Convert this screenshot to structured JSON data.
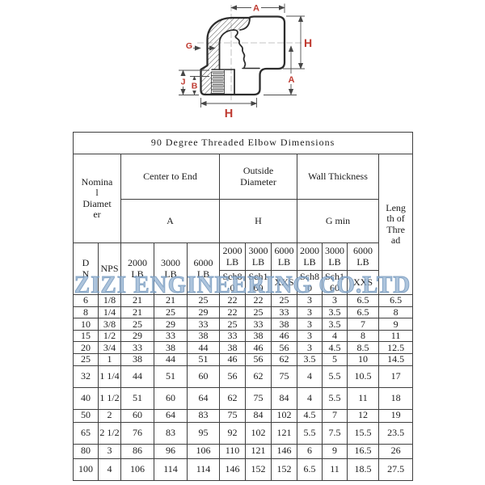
{
  "diagram": {
    "labels": {
      "top_a": "A",
      "right_h": "H",
      "right_a": "A",
      "g": "G",
      "j": "J",
      "b": "B",
      "bottom_h": "H"
    },
    "label_color": "#bf3a30"
  },
  "watermark": {
    "text": "ZIZI ENGINEERING CO.LTD",
    "color": "#96b4d2"
  },
  "table": {
    "title": "90 Degree Threaded Elbow Dimensions",
    "header": {
      "nominal_diameter": "Nomina\nl\nDiamet\ner",
      "center_to_end": "Center to End",
      "outside_diameter": "Outside\nDiameter",
      "wall_thickness": "Wall Thickness",
      "length_of_thread": "Leng\nth of\nThre\nad",
      "a": "A",
      "h": "H",
      "g_min": "G min",
      "dn": "D\nN",
      "nps": "NPS",
      "center_ratings": [
        "2000\nLB",
        "3000\nLB",
        "6000\nLB"
      ],
      "od_ratings": [
        "2000\nLB",
        "3000\nLB",
        "6000\nLB"
      ],
      "od_schedules": [
        "Sch8\n0",
        "Sch1\n60",
        "XXS"
      ],
      "wall_ratings": [
        "2000\nLB",
        "3000\nLB",
        "6000\nLB"
      ],
      "wall_schedules": [
        "Sch8\n0",
        "Sch1\n60",
        "XXS"
      ]
    },
    "rows": [
      {
        "dn": "6",
        "nps": "1/8",
        "a": [
          "21",
          "21",
          "25"
        ],
        "h": [
          "22",
          "22",
          "25"
        ],
        "g": [
          "3",
          "3",
          "6.5"
        ],
        "thread": "6.5"
      },
      {
        "dn": "8",
        "nps": "1/4",
        "a": [
          "21",
          "25",
          "29"
        ],
        "h": [
          "22",
          "25",
          "33"
        ],
        "g": [
          "3",
          "3.5",
          "6.5"
        ],
        "thread": "8"
      },
      {
        "dn": "10",
        "nps": "3/8",
        "a": [
          "25",
          "29",
          "33"
        ],
        "h": [
          "25",
          "33",
          "38"
        ],
        "g": [
          "3",
          "3.5",
          "7"
        ],
        "thread": "9"
      },
      {
        "dn": "15",
        "nps": "1/2",
        "a": [
          "29",
          "33",
          "38"
        ],
        "h": [
          "33",
          "38",
          "46"
        ],
        "g": [
          "3",
          "4",
          "8"
        ],
        "thread": "11"
      },
      {
        "dn": "20",
        "nps": "3/4",
        "a": [
          "33",
          "38",
          "44"
        ],
        "h": [
          "38",
          "46",
          "56"
        ],
        "g": [
          "3",
          "4.5",
          "8.5"
        ],
        "thread": "12.5"
      },
      {
        "dn": "25",
        "nps": "1",
        "a": [
          "38",
          "44",
          "51"
        ],
        "h": [
          "46",
          "56",
          "62"
        ],
        "g": [
          "3.5",
          "5",
          "10"
        ],
        "thread": "14.5"
      },
      {
        "dn": "32",
        "nps": "1 1/4",
        "a": [
          "44",
          "51",
          "60"
        ],
        "h": [
          "56",
          "62",
          "75"
        ],
        "g": [
          "4",
          "5.5",
          "10.5"
        ],
        "thread": "17"
      },
      {
        "dn": "40",
        "nps": "1 1/2",
        "a": [
          "51",
          "60",
          "64"
        ],
        "h": [
          "62",
          "75",
          "84"
        ],
        "g": [
          "4",
          "5.5",
          "11"
        ],
        "thread": "18"
      },
      {
        "dn": "50",
        "nps": "2",
        "a": [
          "60",
          "64",
          "83"
        ],
        "h": [
          "75",
          "84",
          "102"
        ],
        "g": [
          "4.5",
          "7",
          "12"
        ],
        "thread": "19"
      },
      {
        "dn": "65",
        "nps": "2 1/2",
        "a": [
          "76",
          "83",
          "95"
        ],
        "h": [
          "92",
          "102",
          "121"
        ],
        "g": [
          "5.5",
          "7.5",
          "15.5"
        ],
        "thread": "23.5"
      },
      {
        "dn": "80",
        "nps": "3",
        "a": [
          "86",
          "96",
          "106"
        ],
        "h": [
          "110",
          "121",
          "146"
        ],
        "g": [
          "6",
          "9",
          "16.5"
        ],
        "thread": "26"
      },
      {
        "dn": "100",
        "nps": "4",
        "a": [
          "106",
          "114",
          "114"
        ],
        "h": [
          "146",
          "152",
          "152"
        ],
        "g": [
          "6.5",
          "11",
          "18.5"
        ],
        "thread": "27.5"
      }
    ]
  }
}
